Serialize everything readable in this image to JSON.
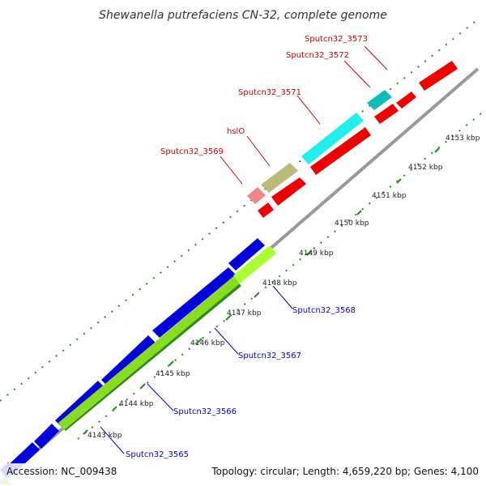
{
  "title": "Shewanella putrefaciens CN-32, complete genome",
  "footer": {
    "accession": "Accession: NC_009438",
    "summary": "Topology: circular; Length: 4,659,220 bp; Genes: 4,100"
  },
  "colors": {
    "backbone": "#999999",
    "tick": "#228b22",
    "forward_label": "#cc0000",
    "reverse_label": "#0000cc"
  },
  "kbp_ticks": [
    "4143 kbp",
    "4144 kbp",
    "4145 kbp",
    "4146 kbp",
    "4147 kbp",
    "4148 kbp",
    "4149 kbp",
    "4150 kbp",
    "4151 kbp",
    "4152 kbp",
    "4153 kbp"
  ],
  "forward_gene_labels": [
    "Sputcn32_3573",
    "Sputcn32_3572",
    "Sputcn32_3571",
    "hslO",
    "Sputcn32_3569"
  ],
  "reverse_gene_labels": [
    "Sputcn32_3568",
    "Sputcn32_3567",
    "Sputcn32_3566",
    "Sputcn32_3565"
  ]
}
